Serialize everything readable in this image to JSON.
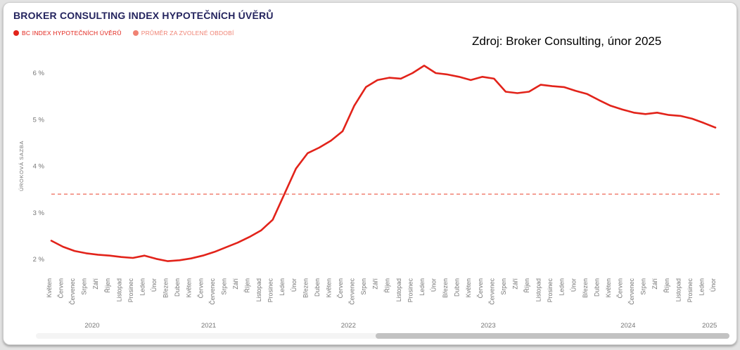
{
  "header": {
    "title": "BROKER CONSULTING INDEX HYPOTEČNÍCH ÚVĚRŮ"
  },
  "legend": {
    "items": [
      {
        "label": "BC INDEX HYPOTEČNÍCH ÚVĚRŮ",
        "color": "#e2231a"
      },
      {
        "label": "PRŮMĚR ZA ZVOLENÉ OBDOBÍ",
        "color": "#f08273"
      }
    ]
  },
  "annotation": {
    "source": "Zdroj: Broker Consulting, únor 2025"
  },
  "chart_data": {
    "type": "line",
    "title": "BROKER CONSULTING INDEX HYPOTEČNÍCH ÚVĚRŮ",
    "xlabel": "",
    "ylabel": "ÚROKOVÁ SAZBA",
    "unit": "%",
    "grid": false,
    "legend_position": "top-left",
    "ylim": [
      1.8,
      6.4
    ],
    "yticks": [
      {
        "label": "2 %",
        "value": 2
      },
      {
        "label": "3 %",
        "value": 3
      },
      {
        "label": "4 %",
        "value": 4
      },
      {
        "label": "5 %",
        "value": 5
      },
      {
        "label": "6 %",
        "value": 6
      }
    ],
    "x": [
      "Květen",
      "Červen",
      "Červenec",
      "Srpen",
      "Září",
      "Říjen",
      "Listopad",
      "Prosinec",
      "Leden",
      "Únor",
      "Březen",
      "Duben",
      "Květen",
      "Červen",
      "Červenec",
      "Srpen",
      "Září",
      "Říjen",
      "Listopad",
      "Prosinec",
      "Leden",
      "Únor",
      "Březen",
      "Duben",
      "Květen",
      "Červen",
      "Červenec",
      "Srpen",
      "Září",
      "Říjen",
      "Listopad",
      "Prosinec",
      "Leden",
      "Únor",
      "Březen",
      "Duben",
      "Květen",
      "Červen",
      "Červenec",
      "Srpen",
      "Září",
      "Říjen",
      "Listopad",
      "Prosinec",
      "Leden",
      "Únor",
      "Březen",
      "Duben",
      "Květen",
      "Červen",
      "Červenec",
      "Srpen",
      "Září",
      "Říjen",
      "Listopad",
      "Prosinec",
      "Leden",
      "Únor"
    ],
    "years": [
      {
        "label": "2020",
        "start": 0,
        "end": 7
      },
      {
        "label": "2021",
        "start": 8,
        "end": 19
      },
      {
        "label": "2022",
        "start": 20,
        "end": 31
      },
      {
        "label": "2023",
        "start": 32,
        "end": 43
      },
      {
        "label": "2024",
        "start": 44,
        "end": 55
      },
      {
        "label": "2025",
        "start": 56,
        "end": 57
      }
    ],
    "series": [
      {
        "name": "BC INDEX HYPOTEČNÍCH ÚVĚRŮ",
        "color": "#e2231a",
        "values": [
          2.4,
          2.27,
          2.18,
          2.13,
          2.1,
          2.08,
          2.05,
          2.03,
          2.08,
          2.01,
          1.96,
          1.98,
          2.02,
          2.08,
          2.16,
          2.26,
          2.36,
          2.48,
          2.62,
          2.85,
          3.4,
          3.95,
          4.28,
          4.4,
          4.55,
          4.75,
          5.3,
          5.7,
          5.85,
          5.9,
          5.88,
          6.0,
          6.16,
          6.0,
          5.97,
          5.92,
          5.85,
          5.92,
          5.88,
          5.6,
          5.57,
          5.6,
          5.75,
          5.72,
          5.7,
          5.62,
          5.55,
          5.42,
          5.3,
          5.22,
          5.15,
          5.12,
          5.15,
          5.1,
          5.08,
          5.02,
          4.93,
          4.83
        ]
      }
    ],
    "average": 3.4,
    "average_name": "PRŮMĚR ZA ZVOLENÉ OBDOBÍ",
    "average_color": "#f08273"
  }
}
